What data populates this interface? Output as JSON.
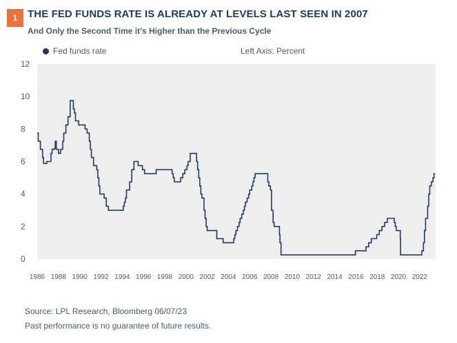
{
  "header": {
    "badge": "1",
    "title": "THE FED FUNDS RATE IS ALREADY AT LEVELS LAST SEEN IN 2007",
    "subtitle": "And Only the Second Time it’s Higher than the Previous Cycle"
  },
  "legend": {
    "series_label": "Fed funds rate",
    "axis_note": "Left Axis: Percent"
  },
  "footer": {
    "source": "Source: LPL Research, Bloomberg  06/07/23",
    "disclaimer": "Past performance is no guarantee of future results."
  },
  "colors": {
    "line": "#1f3a5f",
    "plot_bg": "#eeeeee",
    "badge": "#e8743b"
  },
  "chart_data": {
    "type": "line",
    "title": "THE FED FUNDS RATE IS ALREADY AT LEVELS LAST SEEN IN 2007",
    "subtitle": "And Only the Second Time it’s Higher than the Previous Cycle",
    "xlabel": "",
    "ylabel": "Left Axis: Percent",
    "xlim": [
      1986,
      2023.5
    ],
    "ylim": [
      0,
      12
    ],
    "yticks": [
      0,
      2,
      4,
      6,
      8,
      10,
      12
    ],
    "xticks": [
      1986,
      1988,
      1990,
      1992,
      1994,
      1996,
      1998,
      2000,
      2002,
      2004,
      2006,
      2008,
      2010,
      2012,
      2014,
      2016,
      2018,
      2020,
      2022
    ],
    "grid": false,
    "legend_position": "top-left",
    "series": [
      {
        "name": "Fed funds rate",
        "points": [
          [
            1986.0,
            7.75
          ],
          [
            1986.1,
            7.25
          ],
          [
            1986.3,
            6.75
          ],
          [
            1986.5,
            6.25
          ],
          [
            1986.6,
            5.88
          ],
          [
            1986.9,
            6.0
          ],
          [
            1987.3,
            6.5
          ],
          [
            1987.4,
            6.75
          ],
          [
            1987.6,
            6.8
          ],
          [
            1987.7,
            7.25
          ],
          [
            1987.8,
            6.75
          ],
          [
            1988.0,
            6.5
          ],
          [
            1988.2,
            6.75
          ],
          [
            1988.4,
            7.25
          ],
          [
            1988.5,
            7.75
          ],
          [
            1988.7,
            8.25
          ],
          [
            1988.9,
            8.75
          ],
          [
            1989.1,
            9.75
          ],
          [
            1989.3,
            9.75
          ],
          [
            1989.4,
            9.25
          ],
          [
            1989.5,
            9.0
          ],
          [
            1989.6,
            8.5
          ],
          [
            1989.9,
            8.25
          ],
          [
            1990.5,
            8.0
          ],
          [
            1990.7,
            7.75
          ],
          [
            1990.9,
            7.25
          ],
          [
            1991.0,
            6.75
          ],
          [
            1991.1,
            6.25
          ],
          [
            1991.3,
            5.75
          ],
          [
            1991.6,
            5.5
          ],
          [
            1991.7,
            5.0
          ],
          [
            1991.8,
            4.5
          ],
          [
            1991.9,
            4.0
          ],
          [
            1992.3,
            3.75
          ],
          [
            1992.5,
            3.25
          ],
          [
            1992.7,
            3.0
          ],
          [
            1994.1,
            3.25
          ],
          [
            1994.2,
            3.5
          ],
          [
            1994.3,
            3.75
          ],
          [
            1994.4,
            4.25
          ],
          [
            1994.7,
            4.75
          ],
          [
            1994.9,
            5.5
          ],
          [
            1995.1,
            6.0
          ],
          [
            1995.5,
            5.75
          ],
          [
            1995.9,
            5.5
          ],
          [
            1996.1,
            5.25
          ],
          [
            1997.2,
            5.5
          ],
          [
            1998.7,
            5.25
          ],
          [
            1998.8,
            5.0
          ],
          [
            1998.9,
            4.75
          ],
          [
            1999.5,
            5.0
          ],
          [
            1999.7,
            5.25
          ],
          [
            1999.9,
            5.5
          ],
          [
            2000.1,
            5.75
          ],
          [
            2000.2,
            6.0
          ],
          [
            2000.4,
            6.5
          ],
          [
            2001.0,
            6.0
          ],
          [
            2001.1,
            5.5
          ],
          [
            2001.2,
            5.0
          ],
          [
            2001.3,
            4.5
          ],
          [
            2001.4,
            4.0
          ],
          [
            2001.5,
            3.75
          ],
          [
            2001.7,
            3.0
          ],
          [
            2001.8,
            2.5
          ],
          [
            2001.9,
            2.0
          ],
          [
            2002.0,
            1.75
          ],
          [
            2002.9,
            1.25
          ],
          [
            2003.5,
            1.0
          ],
          [
            2004.5,
            1.25
          ],
          [
            2004.6,
            1.5
          ],
          [
            2004.7,
            1.75
          ],
          [
            2004.85,
            2.0
          ],
          [
            2005.0,
            2.25
          ],
          [
            2005.1,
            2.5
          ],
          [
            2005.25,
            2.75
          ],
          [
            2005.4,
            3.0
          ],
          [
            2005.5,
            3.25
          ],
          [
            2005.6,
            3.5
          ],
          [
            2005.75,
            3.75
          ],
          [
            2005.9,
            4.0
          ],
          [
            2006.0,
            4.25
          ],
          [
            2006.2,
            4.5
          ],
          [
            2006.3,
            4.75
          ],
          [
            2006.4,
            5.0
          ],
          [
            2006.5,
            5.25
          ],
          [
            2007.7,
            4.75
          ],
          [
            2007.8,
            4.5
          ],
          [
            2007.95,
            4.25
          ],
          [
            2008.05,
            3.0
          ],
          [
            2008.2,
            2.25
          ],
          [
            2008.3,
            2.0
          ],
          [
            2008.8,
            1.5
          ],
          [
            2008.85,
            1.0
          ],
          [
            2008.95,
            0.25
          ],
          [
            2015.95,
            0.5
          ],
          [
            2016.95,
            0.75
          ],
          [
            2017.2,
            1.0
          ],
          [
            2017.45,
            1.25
          ],
          [
            2017.95,
            1.5
          ],
          [
            2018.2,
            1.75
          ],
          [
            2018.45,
            2.0
          ],
          [
            2018.7,
            2.25
          ],
          [
            2018.95,
            2.5
          ],
          [
            2019.6,
            2.25
          ],
          [
            2019.7,
            2.0
          ],
          [
            2019.8,
            1.75
          ],
          [
            2020.17,
            1.25
          ],
          [
            2020.2,
            0.25
          ],
          [
            2022.2,
            0.5
          ],
          [
            2022.35,
            1.0
          ],
          [
            2022.45,
            1.75
          ],
          [
            2022.55,
            2.5
          ],
          [
            2022.75,
            3.25
          ],
          [
            2022.85,
            4.0
          ],
          [
            2022.95,
            4.5
          ],
          [
            2023.1,
            4.75
          ],
          [
            2023.25,
            5.0
          ],
          [
            2023.35,
            5.25
          ],
          [
            2023.45,
            5.25
          ]
        ]
      }
    ]
  }
}
